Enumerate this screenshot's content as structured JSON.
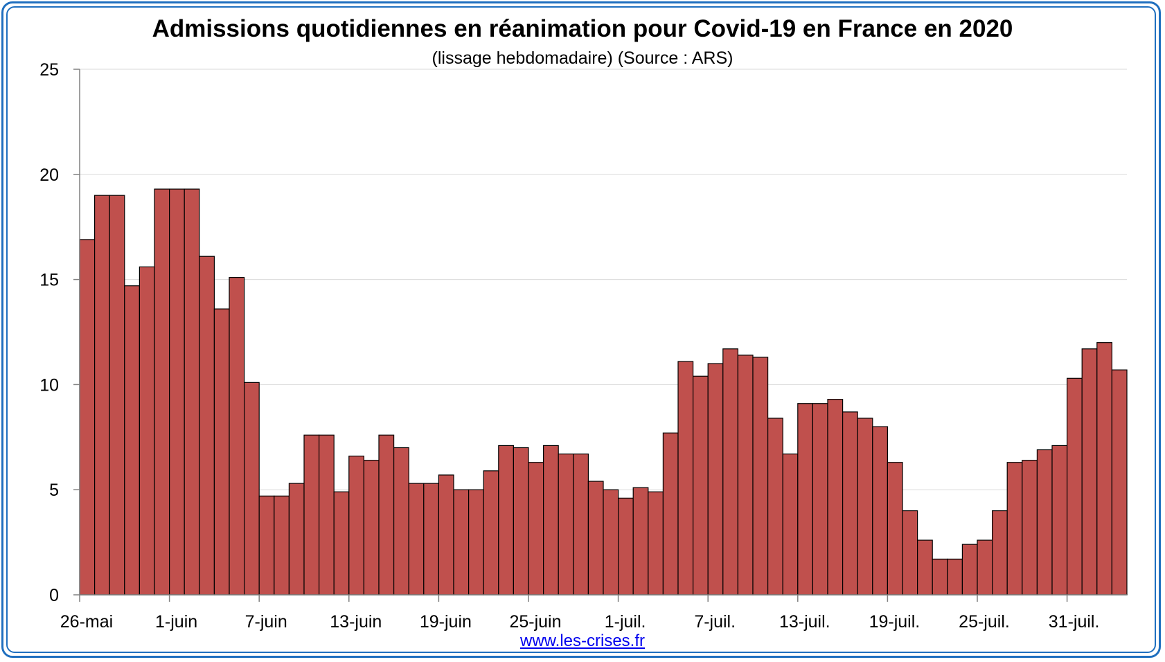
{
  "chart_data": {
    "type": "bar",
    "title": "Admissions quotidiennes en réanimation pour Covid-19 en France en 2020",
    "subtitle": "(lissage hebdomadaire) (Source : ARS)",
    "xlabel": "",
    "ylabel": "",
    "ylim": [
      0,
      25
    ],
    "y_ticks": [
      0,
      5,
      10,
      15,
      20,
      25
    ],
    "x_tick_labels": [
      "26-mai",
      "1-juin",
      "7-juin",
      "13-juin",
      "19-juin",
      "25-juin",
      "1-juil.",
      "7-juil.",
      "13-juil.",
      "19-juil.",
      "25-juil.",
      "31-juil."
    ],
    "x_tick_every": 6,
    "grid": true,
    "bar_color": "#c0504d",
    "values": [
      16.9,
      19.0,
      19.0,
      14.7,
      15.6,
      19.3,
      19.3,
      19.3,
      16.1,
      13.6,
      15.1,
      10.1,
      4.7,
      4.7,
      5.3,
      7.6,
      7.6,
      4.9,
      6.6,
      6.4,
      7.6,
      7.0,
      5.3,
      5.3,
      5.7,
      5.0,
      5.0,
      5.9,
      7.1,
      7.0,
      6.3,
      7.1,
      6.7,
      6.7,
      5.4,
      5.0,
      4.6,
      5.1,
      4.9,
      7.7,
      11.1,
      10.4,
      11.0,
      11.7,
      11.4,
      11.3,
      8.4,
      6.7,
      9.1,
      9.1,
      9.3,
      8.7,
      8.4,
      8.0,
      6.3,
      4.0,
      2.6,
      1.7,
      1.7,
      2.4,
      2.6,
      4.0,
      6.3,
      6.4,
      6.9,
      7.1,
      10.3,
      11.7,
      12.0,
      10.7
    ]
  },
  "footer": {
    "source_link": "www.les-crises.fr"
  }
}
